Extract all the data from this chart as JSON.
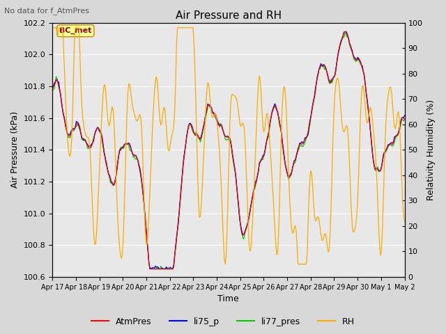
{
  "title": "Air Pressure and RH",
  "subtitle": "No data for f_AtmPres",
  "ylabel_left": "Air Pressure (kPa)",
  "ylabel_right": "Relativity Humidity (%)",
  "xlabel": "Time",
  "ylim_left": [
    100.6,
    102.2
  ],
  "ylim_right": [
    0,
    100
  ],
  "yticks_left": [
    100.6,
    100.8,
    101.0,
    101.2,
    101.4,
    101.6,
    101.8,
    102.0,
    102.2
  ],
  "yticks_right": [
    0,
    10,
    20,
    30,
    40,
    50,
    60,
    70,
    80,
    90,
    100
  ],
  "xtick_labels": [
    "Apr 17",
    "Apr 18",
    "Apr 19",
    "Apr 20",
    "Apr 21",
    "Apr 22",
    "Apr 23",
    "Apr 24",
    "Apr 25",
    "Apr 26",
    "Apr 27",
    "Apr 28",
    "Apr 29",
    "Apr 30",
    "May 1",
    "May 2"
  ],
  "legend_labels": [
    "AtmPres",
    "li75_p",
    "li77_pres",
    "RH"
  ],
  "legend_colors": [
    "#ff0000",
    "#0000ff",
    "#00cc00",
    "#ffaa00"
  ],
  "box_label": "BC_met",
  "box_color": "#ffff99",
  "box_edge_color": "#cc0000",
  "background_color": "#d8d8d8",
  "plot_bg_color": "#e8e8e8",
  "grid_color": "#ffffff",
  "colors": {
    "AtmPres": "#ff0000",
    "li75_p": "#0000ff",
    "li77_pres": "#00cc00",
    "RH": "#ffaa00"
  },
  "title_fontsize": 11,
  "subtitle_fontsize": 8,
  "label_fontsize": 9,
  "tick_fontsize": 8,
  "legend_fontsize": 9
}
